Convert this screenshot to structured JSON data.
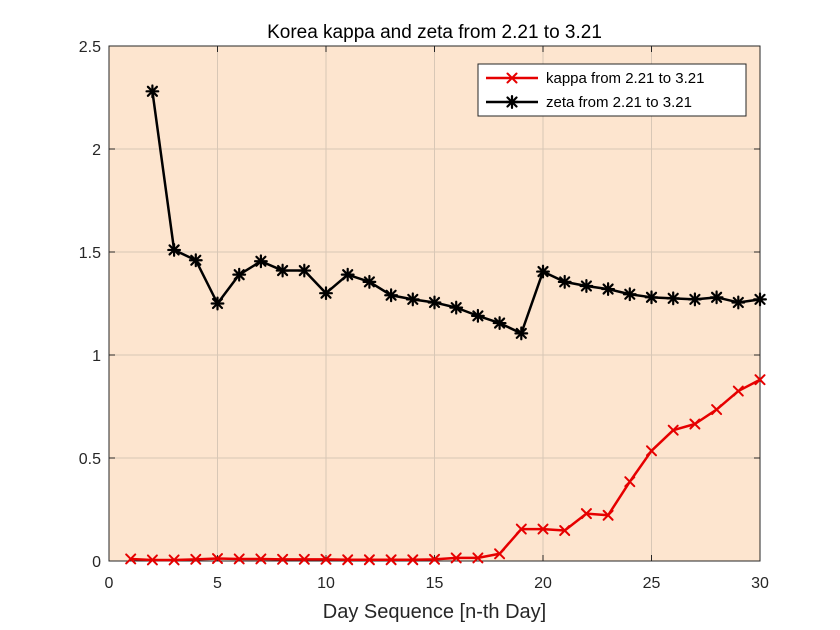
{
  "chart_data": {
    "type": "line",
    "title": "Korea kappa and zeta from 2.21 to 3.21",
    "xlabel": "Day Sequence [n-th Day]",
    "ylabel": "",
    "xlim": [
      0,
      30
    ],
    "ylim": [
      0,
      2.5
    ],
    "xticks": [
      0,
      5,
      10,
      15,
      20,
      25,
      30
    ],
    "yticks": [
      0,
      0.5,
      1,
      1.5,
      2,
      2.5
    ],
    "xtick_labels": [
      "0",
      "5",
      "10",
      "15",
      "20",
      "25",
      "30"
    ],
    "ytick_labels": [
      "0",
      "0.5",
      "1",
      "1.5",
      "2",
      "2.5"
    ],
    "grid": true,
    "legend_position": "top-right",
    "plot_background": "#fde5cf",
    "series": [
      {
        "name": "kappa from 2.21 to 3.21",
        "color": "#e60000",
        "marker": "x",
        "x": [
          1,
          2,
          3,
          4,
          5,
          6,
          7,
          8,
          9,
          10,
          11,
          12,
          13,
          14,
          15,
          16,
          17,
          18,
          19,
          20,
          21,
          22,
          23,
          24,
          25,
          26,
          27,
          28,
          29,
          30
        ],
        "y": [
          0.01,
          0.005,
          0.005,
          0.008,
          0.012,
          0.01,
          0.01,
          0.008,
          0.008,
          0.008,
          0.006,
          0.006,
          0.006,
          0.006,
          0.008,
          0.015,
          0.015,
          0.035,
          0.155,
          0.155,
          0.148,
          0.23,
          0.222,
          0.385,
          0.535,
          0.635,
          0.665,
          0.735,
          0.825,
          0.88
        ]
      },
      {
        "name": "zeta from 2.21 to 3.21",
        "color": "#000000",
        "marker": "star",
        "x": [
          2,
          3,
          4,
          5,
          6,
          7,
          8,
          9,
          10,
          11,
          12,
          13,
          14,
          15,
          16,
          17,
          18,
          19,
          20,
          21,
          22,
          23,
          24,
          25,
          26,
          27,
          28,
          29,
          30
        ],
        "y": [
          2.28,
          1.51,
          1.46,
          1.25,
          1.39,
          1.455,
          1.41,
          1.41,
          1.3,
          1.39,
          1.355,
          1.29,
          1.27,
          1.255,
          1.23,
          1.19,
          1.155,
          1.105,
          1.405,
          1.355,
          1.335,
          1.32,
          1.295,
          1.28,
          1.275,
          1.27,
          1.28,
          1.255,
          1.27
        ]
      }
    ]
  }
}
